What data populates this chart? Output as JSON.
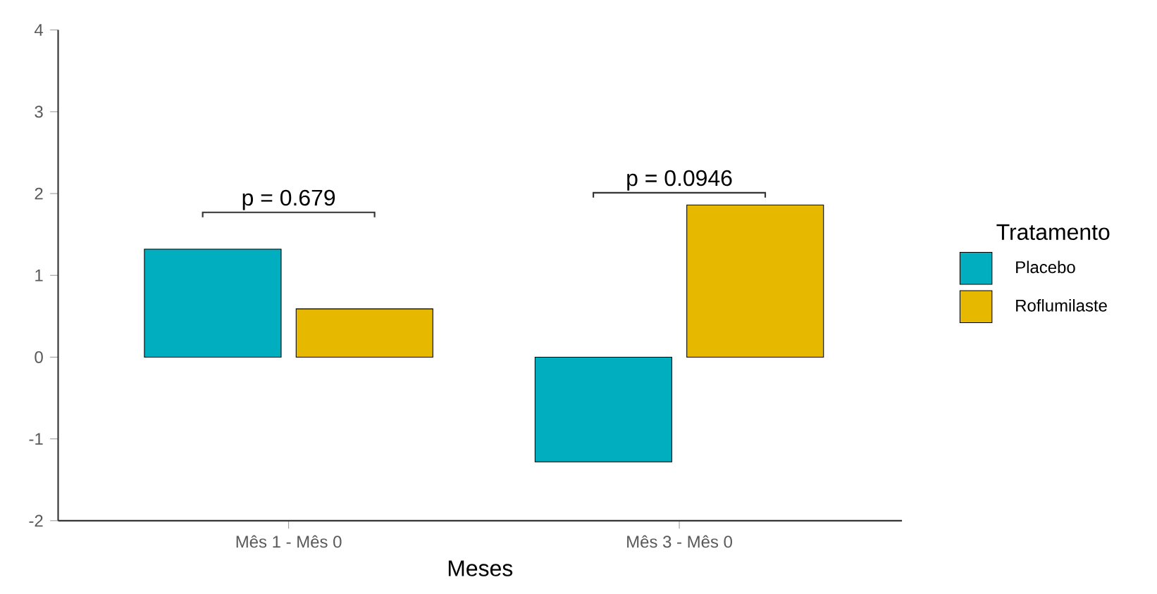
{
  "chart_data": {
    "type": "bar",
    "categories": [
      "Mês 1 - Mês 0",
      "Mês 3 - Mês 0"
    ],
    "series": [
      {
        "name": "Placebo",
        "color": "#00aec0",
        "values": [
          1.32,
          -1.28
        ]
      },
      {
        "name": "Roflumilaste",
        "color": "#e6b800",
        "values": [
          0.59,
          1.86
        ]
      }
    ],
    "xlabel": "Meses",
    "legend_title": "Tratamento",
    "legend": "right",
    "ylim": [
      -2,
      4
    ],
    "yticks": [
      -2,
      -1,
      0,
      1,
      2,
      3,
      4
    ],
    "annotations": [
      "p = 0.679",
      "p = 0.0946"
    ]
  }
}
